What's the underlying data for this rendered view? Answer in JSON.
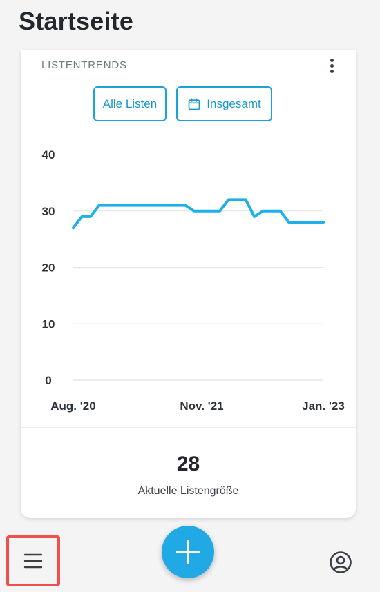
{
  "header": {
    "title": "Startseite"
  },
  "card": {
    "title": "LISTENTRENDS",
    "menu_icon": "kebab-menu-icon",
    "filters": {
      "list_label": "Alle Listen",
      "period_label": "Insgesamt",
      "period_icon": "calendar-icon"
    },
    "summary": {
      "value": "28",
      "label": "Aktuelle Listengröße"
    }
  },
  "chart_data": {
    "type": "line",
    "x_tick_labels": [
      "Aug. '20",
      "Nov. '21",
      "Jan. '23"
    ],
    "y_ticks": [
      0,
      10,
      20,
      30,
      40
    ],
    "ylim": [
      0,
      40
    ],
    "grid": true,
    "line_color": "#1fb0ea",
    "series": [
      {
        "values": [
          27,
          29,
          29,
          31,
          31,
          31,
          31,
          31,
          31,
          31,
          31,
          31,
          31,
          31,
          30,
          30,
          30,
          30,
          32,
          32,
          32,
          29,
          30,
          30,
          30,
          28,
          28,
          28,
          28,
          28
        ]
      }
    ]
  },
  "bottom_nav": {
    "menu_icon": "hamburger-menu-icon",
    "add_icon": "plus-icon",
    "profile_icon": "user-circle-icon",
    "highlight_color": "#f0504a"
  }
}
